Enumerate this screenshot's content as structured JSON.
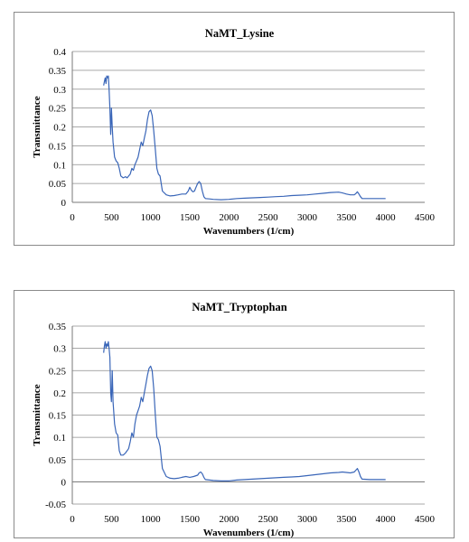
{
  "chart_data": [
    {
      "type": "line",
      "title": "NaMT_Lysine",
      "xlabel": "Wavenumbers (1/cm)",
      "ylabel": "Transmittance",
      "xlim": [
        0,
        4500
      ],
      "ylim": [
        0,
        0.4
      ],
      "xticks": [
        "0",
        "500",
        "1000",
        "1500",
        "2000",
        "2500",
        "3000",
        "3500",
        "4000",
        "4500"
      ],
      "yticks": [
        "0",
        "0.05",
        "0.1",
        "0.15",
        "0.2",
        "0.25",
        "0.3",
        "0.35",
        "0.4"
      ],
      "grid": true,
      "legend": "none",
      "series": [
        {
          "x": [
            400,
            410,
            420,
            430,
            440,
            450,
            460,
            470,
            480,
            490,
            500,
            510,
            520,
            540,
            560,
            580,
            600,
            620,
            650,
            680,
            700,
            720,
            740,
            760,
            780,
            800,
            820,
            840,
            860,
            880,
            900,
            920,
            940,
            960,
            980,
            1000,
            1020,
            1040,
            1060,
            1080,
            1100,
            1120,
            1150,
            1200,
            1250,
            1300,
            1350,
            1400,
            1450,
            1480,
            1500,
            1520,
            1540,
            1560,
            1580,
            1600,
            1620,
            1640,
            1660,
            1680,
            1700,
            1750,
            1800,
            1900,
            2000,
            2100,
            2200,
            2300,
            2400,
            2500,
            2600,
            2700,
            2800,
            2900,
            3000,
            3100,
            3200,
            3300,
            3400,
            3450,
            3500,
            3550,
            3600,
            3620,
            3640,
            3660,
            3680,
            3700,
            3800,
            3900,
            4000
          ],
          "y": [
            0.31,
            0.32,
            0.33,
            0.315,
            0.335,
            0.33,
            0.335,
            0.3,
            0.25,
            0.18,
            0.25,
            0.2,
            0.16,
            0.12,
            0.11,
            0.105,
            0.09,
            0.07,
            0.065,
            0.068,
            0.065,
            0.07,
            0.075,
            0.09,
            0.085,
            0.1,
            0.11,
            0.12,
            0.14,
            0.16,
            0.15,
            0.17,
            0.19,
            0.22,
            0.24,
            0.245,
            0.23,
            0.19,
            0.14,
            0.09,
            0.075,
            0.07,
            0.03,
            0.02,
            0.017,
            0.018,
            0.02,
            0.022,
            0.022,
            0.03,
            0.04,
            0.032,
            0.028,
            0.03,
            0.04,
            0.05,
            0.055,
            0.05,
            0.03,
            0.015,
            0.01,
            0.009,
            0.008,
            0.007,
            0.008,
            0.01,
            0.011,
            0.012,
            0.013,
            0.014,
            0.015,
            0.016,
            0.018,
            0.019,
            0.02,
            0.022,
            0.024,
            0.026,
            0.027,
            0.025,
            0.022,
            0.02,
            0.02,
            0.023,
            0.028,
            0.022,
            0.015,
            0.01,
            0.01,
            0.01,
            0.01
          ]
        }
      ]
    },
    {
      "type": "line",
      "title": "NaMT_Tryptophan",
      "xlabel": "Wavenumbers (1/cm)",
      "ylabel": "Transmittance",
      "xlim": [
        0,
        4500
      ],
      "ylim": [
        -0.05,
        0.35
      ],
      "xticks": [
        "0",
        "500",
        "1000",
        "1500",
        "2000",
        "2500",
        "3000",
        "3500",
        "4000",
        "4500"
      ],
      "yticks": [
        "-0.05",
        "0",
        "0.05",
        "0.1",
        "0.15",
        "0.2",
        "0.25",
        "0.3",
        "0.35"
      ],
      "grid": true,
      "legend": "none",
      "series": [
        {
          "x": [
            400,
            410,
            420,
            430,
            440,
            450,
            460,
            470,
            480,
            490,
            500,
            510,
            520,
            540,
            560,
            580,
            600,
            620,
            650,
            680,
            700,
            720,
            740,
            760,
            780,
            800,
            820,
            840,
            860,
            880,
            900,
            920,
            940,
            960,
            980,
            1000,
            1020,
            1040,
            1060,
            1080,
            1100,
            1120,
            1150,
            1200,
            1250,
            1300,
            1350,
            1400,
            1450,
            1500,
            1550,
            1600,
            1620,
            1640,
            1660,
            1680,
            1700,
            1750,
            1800,
            1900,
            2000,
            2100,
            2200,
            2300,
            2400,
            2500,
            2600,
            2700,
            2800,
            2900,
            3000,
            3100,
            3200,
            3300,
            3400,
            3450,
            3500,
            3550,
            3600,
            3620,
            3640,
            3660,
            3680,
            3700,
            3800,
            3900,
            4000
          ],
          "y": [
            0.29,
            0.305,
            0.315,
            0.3,
            0.31,
            0.305,
            0.315,
            0.3,
            0.28,
            0.2,
            0.18,
            0.25,
            0.18,
            0.13,
            0.11,
            0.105,
            0.07,
            0.06,
            0.06,
            0.065,
            0.07,
            0.075,
            0.09,
            0.11,
            0.1,
            0.13,
            0.15,
            0.16,
            0.17,
            0.19,
            0.18,
            0.2,
            0.22,
            0.24,
            0.255,
            0.26,
            0.25,
            0.21,
            0.15,
            0.1,
            0.095,
            0.08,
            0.03,
            0.012,
            0.008,
            0.007,
            0.008,
            0.01,
            0.012,
            0.01,
            0.012,
            0.015,
            0.02,
            0.022,
            0.018,
            0.01,
            0.005,
            0.004,
            0.003,
            0.002,
            0.002,
            0.004,
            0.005,
            0.006,
            0.007,
            0.008,
            0.009,
            0.01,
            0.011,
            0.012,
            0.014,
            0.016,
            0.018,
            0.02,
            0.021,
            0.022,
            0.021,
            0.02,
            0.022,
            0.026,
            0.03,
            0.022,
            0.012,
            0.006,
            0.005,
            0.005,
            0.005
          ]
        }
      ]
    }
  ]
}
